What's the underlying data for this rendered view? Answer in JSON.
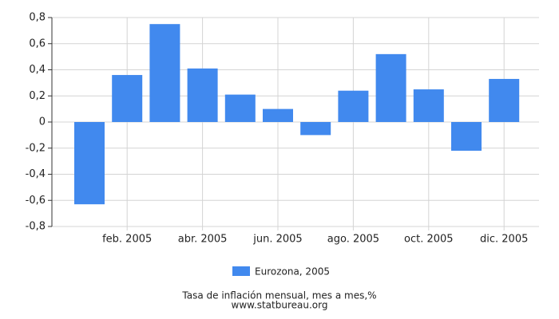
{
  "chart_data": {
    "type": "bar",
    "categories": [
      null,
      "feb. 2005",
      null,
      "abr. 2005",
      null,
      "jun. 2005",
      null,
      "ago. 2005",
      null,
      "oct. 2005",
      null,
      "dic. 2005"
    ],
    "series": [
      {
        "name": "Eurozona, 2005",
        "color": "#4189ee",
        "values": [
          -0.63,
          0.36,
          0.75,
          0.41,
          0.21,
          0.1,
          -0.1,
          0.24,
          0.52,
          0.25,
          -0.22,
          0.33
        ]
      }
    ],
    "ylim": [
      -0.8,
      0.8
    ],
    "yticks": [
      {
        "value": -0.8,
        "label": "-0,8"
      },
      {
        "value": -0.6,
        "label": "-0,6"
      },
      {
        "value": -0.4,
        "label": "-0,4"
      },
      {
        "value": -0.2,
        "label": "-0,2"
      },
      {
        "value": 0,
        "label": "0"
      },
      {
        "value": 0.2,
        "label": "0,2"
      },
      {
        "value": 0.4,
        "label": "0,4"
      },
      {
        "value": 0.6,
        "label": "0,6"
      },
      {
        "value": 0.8,
        "label": "0,8"
      }
    ],
    "grid": true,
    "subtitle": "Tasa de inflación mensual, mes a mes,%",
    "source": "www.statbureau.org"
  }
}
